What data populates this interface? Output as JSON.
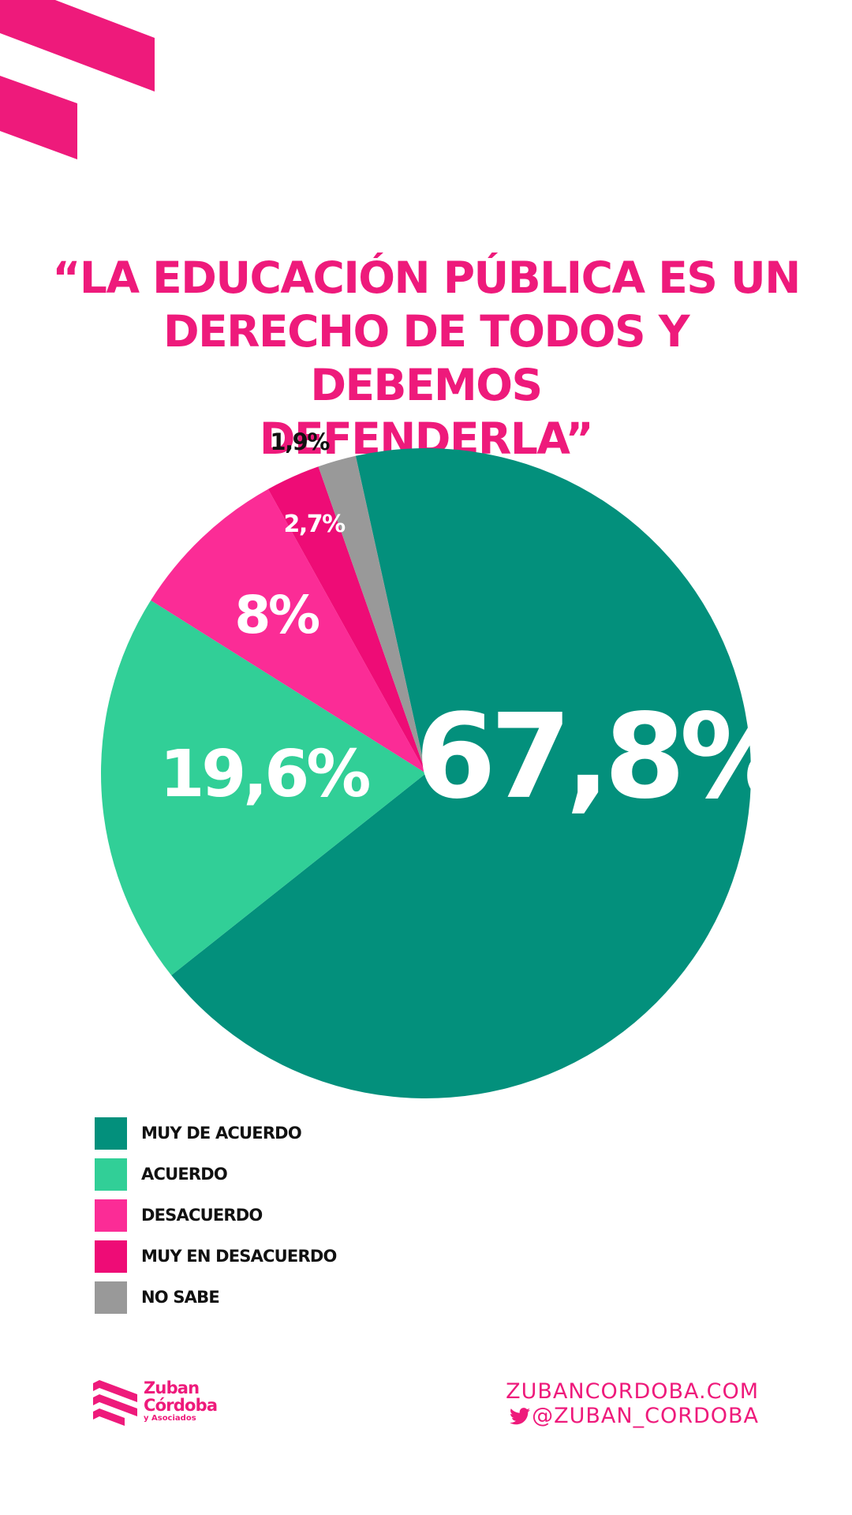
{
  "colors": {
    "brand_pink": "#ee1a7b",
    "muy_de_acuerdo": "#03907c",
    "acuerdo": "#31cf97",
    "desacuerdo": "#fb2c96",
    "muy_en_desacuerdo": "#ee0c76",
    "no_sabe": "#999999"
  },
  "title": "“LA EDUCACIÓN PÚBLICA ES UN\nDERECHO DE TODOS Y DEBEMOS\nDEFENDERLA”",
  "chart_data": {
    "type": "pie",
    "title": "“LA EDUCACIÓN PÚBLICA ES UN DERECHO DE TODOS Y DEBEMOS DEFENDERLA”",
    "legend_position": "bottom-left",
    "slices": [
      {
        "label": "MUY DE ACUERDO",
        "value": 67.8,
        "display": "67,8%",
        "color": "#03907c",
        "label_color": "#ffffff"
      },
      {
        "label": "ACUERDO",
        "value": 19.6,
        "display": "19,6%",
        "color": "#31cf97",
        "label_color": "#ffffff"
      },
      {
        "label": "DESACUERDO",
        "value": 8,
        "display": "8%",
        "color": "#fb2c96",
        "label_color": "#ffffff"
      },
      {
        "label": "MUY EN DESACUERDO",
        "value": 2.7,
        "display": "2,7%",
        "color": "#ee0c76",
        "label_color": "#ffffff"
      },
      {
        "label": "NO SABE",
        "value": 1.9,
        "display": "1,9%",
        "color": "#999999",
        "label_color": "#111111"
      }
    ]
  },
  "brand": {
    "line1": "Zuban",
    "line2": "Córdoba",
    "line3": "y Asociados",
    "logo_icon": "zuban-stripes-logo"
  },
  "contact": {
    "website": "ZUBANCORDOBA.COM",
    "twitter_handle": "@ZUBAN_CORDOBA",
    "twitter_icon": "twitter-bird-icon"
  }
}
